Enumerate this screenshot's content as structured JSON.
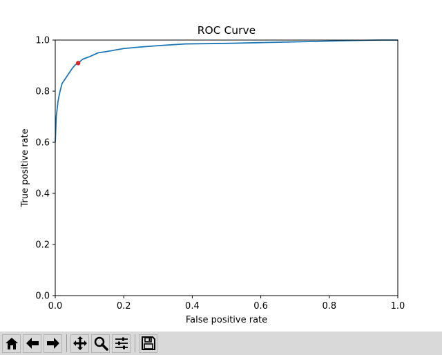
{
  "chart_data": {
    "type": "line",
    "title": "ROC Curve",
    "xlabel": "False positive rate",
    "ylabel": "True positive rate",
    "xlim": [
      0.0,
      1.0
    ],
    "ylim": [
      0.0,
      1.0
    ],
    "xticks": [
      "0.0",
      "0.2",
      "0.4",
      "0.6",
      "0.8",
      "1.0"
    ],
    "yticks": [
      "0.0",
      "0.2",
      "0.4",
      "0.6",
      "0.8",
      "1.0"
    ],
    "grid": false,
    "series": [
      {
        "color": "#1f77b4",
        "x": [
          0.0,
          0.003,
          0.008,
          0.014,
          0.02,
          0.03,
          0.04,
          0.05,
          0.06,
          0.067,
          0.08,
          0.1,
          0.125,
          0.15,
          0.2,
          0.25,
          0.3,
          0.38,
          0.5,
          0.6,
          0.7,
          0.8,
          0.9,
          0.95,
          1.0
        ],
        "y": [
          0.6,
          0.7,
          0.76,
          0.8,
          0.83,
          0.85,
          0.87,
          0.89,
          0.905,
          0.91,
          0.925,
          0.935,
          0.95,
          0.955,
          0.967,
          0.973,
          0.978,
          0.985,
          0.987,
          0.99,
          0.993,
          0.996,
          0.999,
          1.0,
          1.0
        ]
      }
    ],
    "highlight_point": {
      "x": 0.067,
      "y": 0.91,
      "color": "#d62728"
    }
  },
  "toolbar": {
    "buttons": [
      {
        "name": "home-button",
        "icon": "home-icon"
      },
      {
        "name": "back-button",
        "icon": "arrow-left-icon"
      },
      {
        "name": "forward-button",
        "icon": "arrow-right-icon"
      },
      {
        "name": "pan-button",
        "icon": "move-icon"
      },
      {
        "name": "zoom-button",
        "icon": "zoom-icon"
      },
      {
        "name": "configure-subplots-button",
        "icon": "sliders-icon"
      },
      {
        "name": "save-button",
        "icon": "save-icon"
      }
    ]
  }
}
